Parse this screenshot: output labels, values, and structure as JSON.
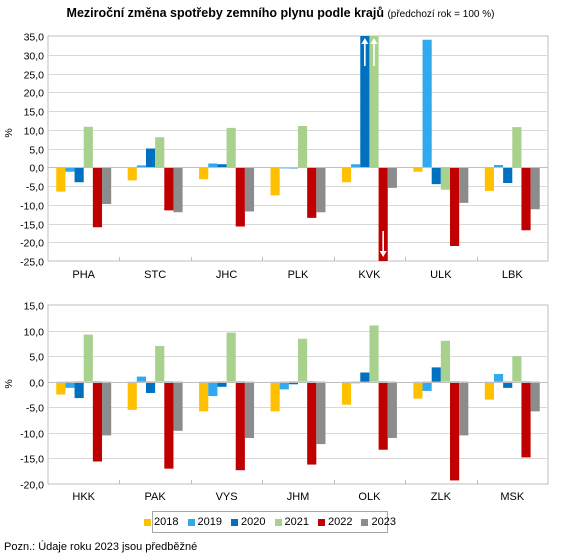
{
  "title": "Meziroční změna spotřeby zemního plynu podle krajů",
  "subtitle": "(předchozí rok = 100 %)",
  "footnote": "Pozn.: Údaje roku 2023 jsou předběžné",
  "colors": {
    "2018": "#FFC000",
    "2019": "#31A9EF",
    "2020": "#0070C0",
    "2021": "#A9D18E",
    "2022": "#C00000",
    "2023": "#8C8C8C"
  },
  "chart_data": [
    {
      "type": "bar",
      "ylabel": "%",
      "ylim": [
        -25,
        35
      ],
      "y_step": 5,
      "y_ticks": [
        "-25,0",
        "-20,0",
        "-15,0",
        "-10,0",
        "-5,0",
        "0,0",
        "5,0",
        "10,0",
        "15,0",
        "20,0",
        "25,0",
        "30,0",
        "35,0"
      ],
      "grid": true,
      "categories": [
        "PHA",
        "STC",
        "JHC",
        "PLK",
        "KVK",
        "ULK",
        "LBK"
      ],
      "series": [
        {
          "name": "2018",
          "values": [
            -6.5,
            -3.5,
            -3.2,
            -7.5,
            -4.0,
            -1.2,
            -6.3
          ]
        },
        {
          "name": "2019",
          "values": [
            -1.2,
            0.5,
            1.0,
            -0.3,
            0.8,
            34.0,
            0.6
          ]
        },
        {
          "name": "2020",
          "values": [
            -4.0,
            5.0,
            0.8,
            -0.3,
            35.0,
            -4.5,
            -4.2
          ]
        },
        {
          "name": "2021",
          "values": [
            10.8,
            8.0,
            10.5,
            11.0,
            35.0,
            -6.0,
            10.7
          ]
        },
        {
          "name": "2022",
          "values": [
            -16.0,
            -11.5,
            -15.8,
            -13.5,
            -25.0,
            -21.0,
            -16.8
          ]
        },
        {
          "name": "2023",
          "values": [
            -9.8,
            -12.0,
            -11.8,
            -12.0,
            -5.5,
            -9.5,
            -11.2
          ]
        }
      ],
      "annotations": [
        "up-arrow KVK 2020 (value exceeds axis)",
        "up-arrow KVK 2021 (value exceeds axis)",
        "down-arrow KVK 2022 (value exceeds axis)"
      ]
    },
    {
      "type": "bar",
      "ylabel": "%",
      "ylim": [
        -20,
        15
      ],
      "y_step": 5,
      "y_ticks": [
        "-20,0",
        "-15,0",
        "-10,0",
        "-5,0",
        "0,0",
        "5,0",
        "10,0",
        "15,0"
      ],
      "grid": true,
      "categories": [
        "HKK",
        "PAK",
        "VYS",
        "JHM",
        "OLK",
        "ZLK",
        "MSK"
      ],
      "series": [
        {
          "name": "2018",
          "values": [
            -2.5,
            -5.5,
            -5.8,
            -5.8,
            -4.5,
            -3.3,
            -3.5
          ]
        },
        {
          "name": "2019",
          "values": [
            -1.2,
            1.0,
            -2.8,
            -1.5,
            -0.3,
            -1.8,
            1.5
          ]
        },
        {
          "name": "2020",
          "values": [
            -3.2,
            -2.2,
            -1.0,
            -0.5,
            1.8,
            2.8,
            -1.2
          ]
        },
        {
          "name": "2021",
          "values": [
            9.2,
            7.0,
            9.6,
            8.4,
            11.0,
            8.0,
            5.0
          ]
        },
        {
          "name": "2022",
          "values": [
            -15.6,
            -17.0,
            -17.3,
            -16.2,
            -13.3,
            -19.3,
            -14.8
          ]
        },
        {
          "name": "2023",
          "values": [
            -10.5,
            -9.6,
            -11.0,
            -12.2,
            -11.0,
            -10.5,
            -5.8
          ]
        }
      ]
    }
  ]
}
